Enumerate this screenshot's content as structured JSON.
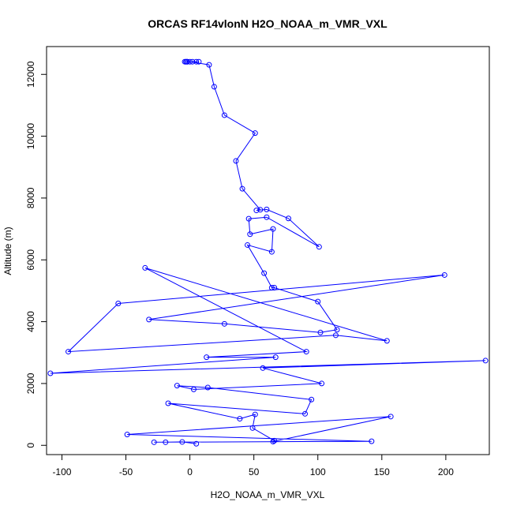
{
  "chart_data": {
    "type": "line",
    "title": "ORCAS RF14vlonN H2O_NOAA_m_VMR_VXL",
    "xlabel": "H2O_NOAA_m_VMR_VXL",
    "ylabel": "Altitude (m)",
    "xlim": [
      -112,
      234
    ],
    "ylim": [
      -300,
      12900
    ],
    "x_ticks": [
      -100,
      -50,
      0,
      50,
      100,
      150,
      200
    ],
    "y_ticks": [
      0,
      2000,
      4000,
      6000,
      8000,
      10000,
      12000
    ],
    "series_color": "#0000ff",
    "grid": false,
    "series": [
      {
        "x": [
          7,
          5,
          2,
          -2,
          -3,
          -4,
          -3,
          -2,
          0,
          15,
          19,
          27,
          51,
          36,
          41,
          55,
          52,
          60,
          77,
          101,
          60,
          46,
          47,
          65,
          64,
          45,
          58,
          64,
          66,
          100,
          115,
          102,
          27,
          -32,
          199,
          -56,
          -95,
          114,
          154,
          -35,
          91,
          13,
          67,
          -109,
          231,
          57,
          103,
          3,
          -10,
          14,
          95,
          90,
          -17,
          39,
          51,
          49,
          66,
          65,
          157,
          -49,
          142,
          -28,
          -19,
          -6,
          5
        ],
        "y": [
          12410,
          12410,
          12410,
          12410,
          12410,
          12410,
          12410,
          12410,
          12410,
          12310,
          11600,
          10680,
          10100,
          9200,
          8300,
          7620,
          7600,
          7630,
          7340,
          6420,
          7380,
          7330,
          6830,
          7000,
          6260,
          6480,
          5570,
          5100,
          5100,
          4650,
          3740,
          3650,
          3930,
          4070,
          5510,
          4590,
          3030,
          3560,
          3380,
          5740,
          3030,
          2850,
          2850,
          2330,
          2740,
          2500,
          2000,
          1810,
          1930,
          1870,
          1480,
          1020,
          1360,
          860,
          1000,
          560,
          150,
          120,
          930,
          350,
          130,
          100,
          100,
          110,
          50
        ]
      }
    ]
  }
}
